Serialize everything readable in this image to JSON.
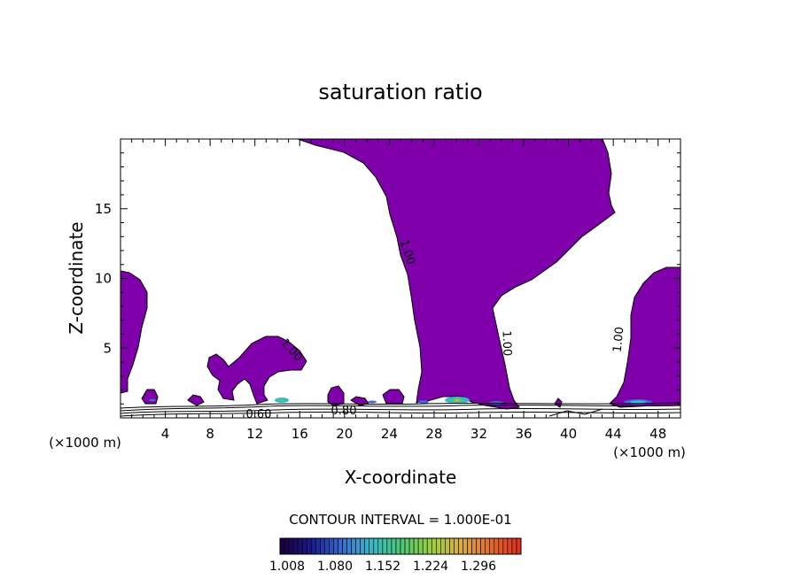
{
  "chart_data": {
    "type": "heatmap",
    "title": "saturation ratio",
    "xlabel": "X-coordinate",
    "ylabel": "Z-coordinate",
    "x_unit_left": "(×1000 m)",
    "x_unit_right": "(×1000 m)",
    "xlim": [
      0,
      50
    ],
    "ylim": [
      0,
      20
    ],
    "x_ticks": [
      4,
      8,
      12,
      16,
      20,
      24,
      28,
      32,
      36,
      40,
      44,
      48
    ],
    "y_ticks": [
      5,
      10,
      15
    ],
    "x_tick_labels": [
      "4",
      "8",
      "12",
      "16",
      "20",
      "24",
      "28",
      "32",
      "36",
      "40",
      "44",
      "48"
    ],
    "y_tick_labels": [
      "5",
      "10",
      "15"
    ],
    "contour_interval_text": "CONTOUR INTERVAL = 1.000E-01",
    "contour_labels": [
      "1.00",
      "1.00",
      "1.00",
      "1.00",
      "0.60",
      "0.80"
    ],
    "fill_color": "#7f00aa",
    "colorbar": {
      "tick_labels": [
        "1.008",
        "1.080",
        "1.152",
        "1.224",
        "1.296"
      ],
      "colors": [
        "#1a0040",
        "#1a1a8c",
        "#3a6ad0",
        "#3ab8c8",
        "#4ac878",
        "#9ad040",
        "#d8b040",
        "#e07030",
        "#e03020"
      ]
    }
  }
}
